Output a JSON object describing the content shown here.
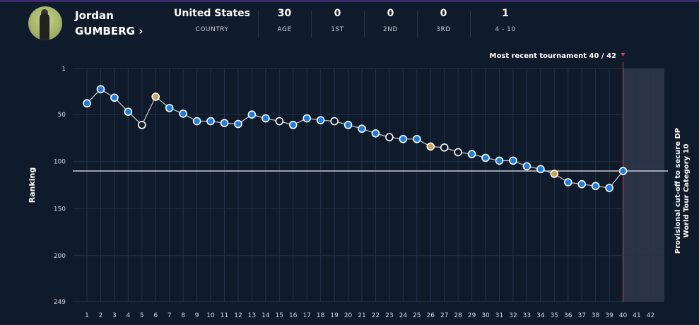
{
  "player": {
    "first_name": "Jordan",
    "last_name": "GUMBERG",
    "chevron": "›"
  },
  "stats": [
    {
      "value": "United States",
      "label": "COUNTRY"
    },
    {
      "value": "30",
      "label": "AGE"
    },
    {
      "value": "0",
      "label": "1ST"
    },
    {
      "value": "0",
      "label": "2ND"
    },
    {
      "value": "0",
      "label": "3RD"
    },
    {
      "value": "1",
      "label": "4 - 10"
    }
  ],
  "chart_data": {
    "type": "line",
    "ylabel": "Ranking",
    "ylim": [
      1,
      249
    ],
    "y_inverted": true,
    "y_ticks": [
      "1",
      "50",
      "100",
      "150",
      "200",
      "249"
    ],
    "x_ticks": [
      "1",
      "2",
      "3",
      "4",
      "5",
      "6",
      "7",
      "8",
      "9",
      "10",
      "11",
      "12",
      "13",
      "14",
      "15",
      "16",
      "17",
      "18",
      "19",
      "20",
      "21",
      "22",
      "23",
      "24",
      "25",
      "26",
      "27",
      "28",
      "29",
      "30",
      "31",
      "32",
      "33",
      "34",
      "35",
      "36",
      "37",
      "38",
      "39",
      "40",
      "41",
      "42"
    ],
    "x": [
      1,
      2,
      3,
      4,
      5,
      6,
      7,
      8,
      9,
      10,
      11,
      12,
      13,
      14,
      15,
      16,
      17,
      18,
      19,
      20,
      21,
      22,
      23,
      24,
      25,
      26,
      27,
      28,
      29,
      30,
      31,
      32,
      33,
      34,
      35,
      36,
      37,
      38,
      39,
      40
    ],
    "values": [
      38,
      23,
      32,
      47,
      61,
      31,
      43,
      49,
      57,
      57,
      59,
      60,
      50,
      54,
      57,
      61,
      54,
      56,
      57,
      61,
      65,
      70,
      74,
      76,
      76,
      84,
      85,
      90,
      92,
      96,
      99,
      99,
      105,
      108,
      113,
      122,
      124,
      126,
      128,
      110
    ],
    "point_types": [
      "blue",
      "blue",
      "blue",
      "blue",
      "hollow",
      "gold",
      "blue",
      "blue",
      "blue",
      "blue",
      "blue",
      "blue",
      "blue",
      "blue",
      "hollow",
      "blue",
      "blue",
      "blue",
      "hollow",
      "blue",
      "blue",
      "blue",
      "hollow",
      "blue",
      "blue",
      "gold",
      "hollow",
      "hollow",
      "blue",
      "blue",
      "blue",
      "blue",
      "blue",
      "blue",
      "gold",
      "blue",
      "blue",
      "blue",
      "blue",
      "blue"
    ],
    "cutoff_value": 110,
    "cutoff_label_line1": "Provisional cut-off to secure DP",
    "cutoff_label_line2": "World Tour Category 10",
    "recent_label": "Most recent tournament 40 / 42",
    "recent_index": 40,
    "grid": true,
    "colors": {
      "blue": "#1e7be0",
      "gold": "#c9a35a",
      "hollow": "#0f1a2a",
      "marker": "#e23b4a",
      "line": "#c8cdd6"
    }
  }
}
